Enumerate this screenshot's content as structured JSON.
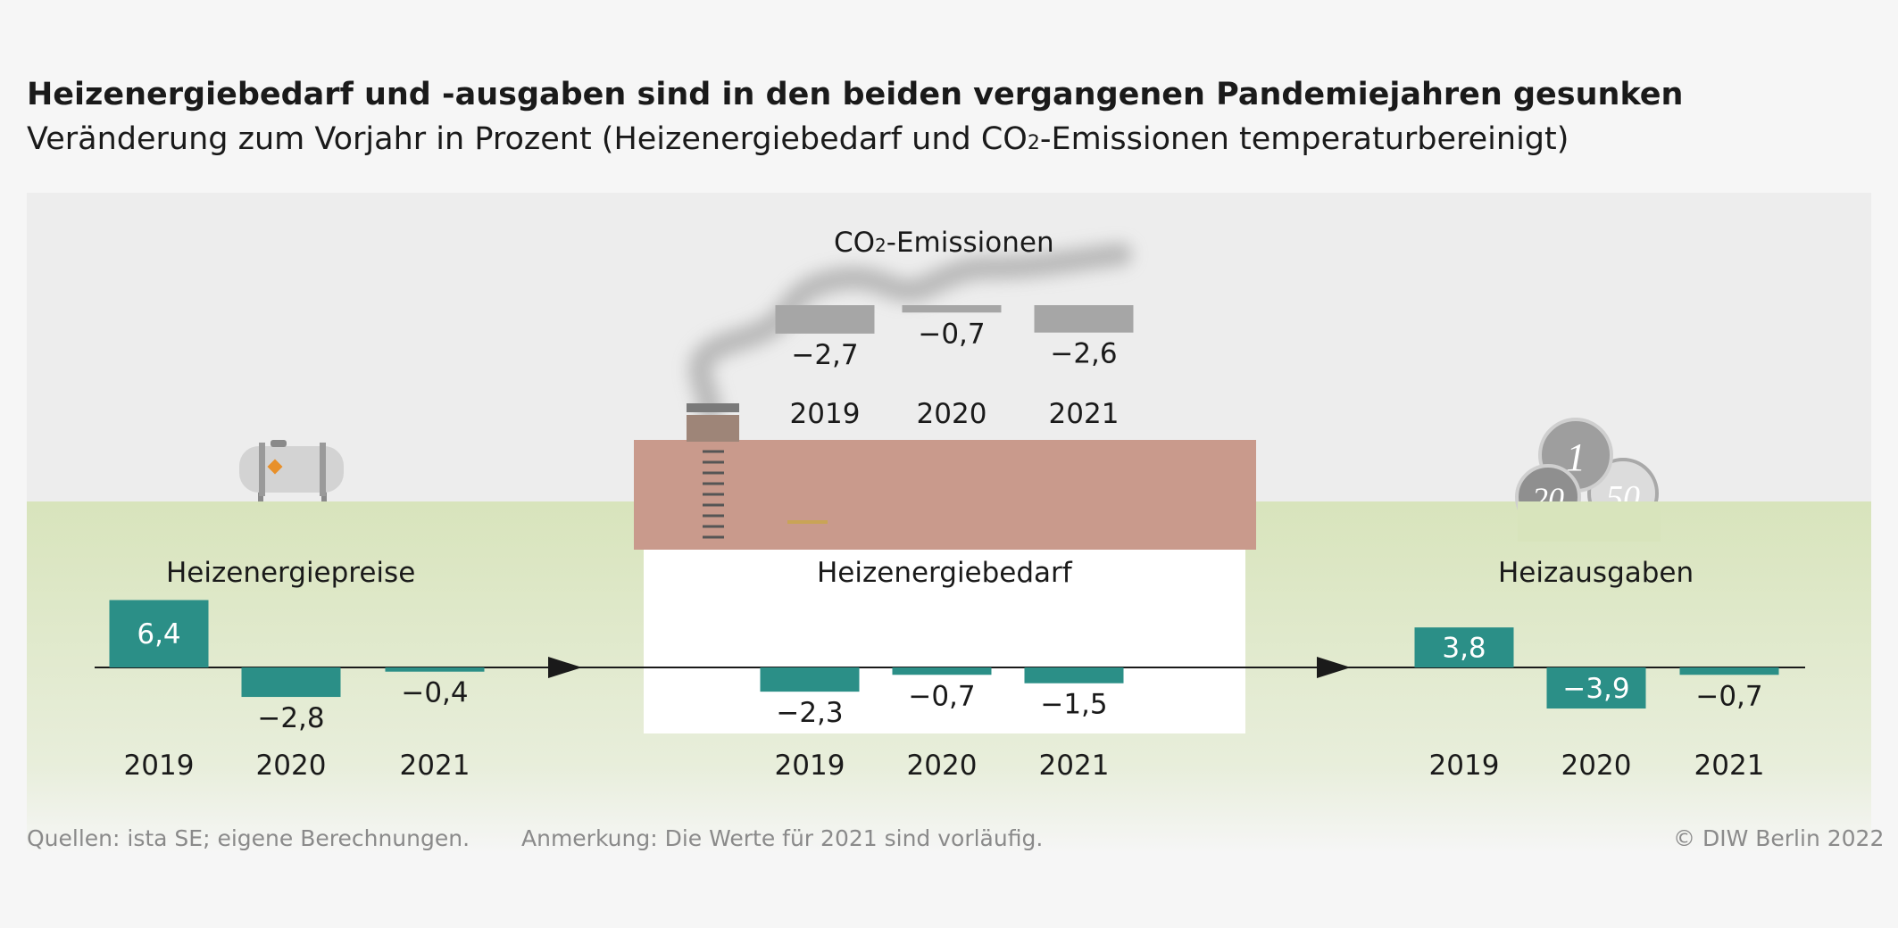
{
  "header": {
    "title": "Heizenergiebedarf und -ausgaben sind in den beiden vergangenen Pandemiejahren gesunken",
    "subtitle_pre": "Veränderung zum Vorjahr in Prozent (Heizenergiebedarf und CO",
    "subtitle_sub": "2",
    "subtitle_post": "-Emissionen temperaturbereinigt)"
  },
  "footer": {
    "sources": "Quellen: ista SE; eigene Berechnungen.",
    "note": "Anmerkung: Die Werte für 2021 sind vorläufig.",
    "copyright": "© DIW Berlin 2022"
  },
  "colors": {
    "bar_teal": "#2b8f87",
    "bar_grey": "#a6a6a6",
    "sky": "#ededed",
    "ground": "#d8e4bc",
    "roof": "#c99a8c",
    "axis": "#1a1a1a"
  },
  "icons": [
    "oil-tank-icon",
    "chimney-smoke-icon",
    "coin-icon"
  ],
  "chart_data": [
    {
      "type": "bar",
      "title": "Heizenergiepreise",
      "categories": [
        "2019",
        "2020",
        "2021"
      ],
      "values": [
        6.4,
        -2.8,
        -0.4
      ],
      "value_labels": [
        "6,4",
        "−2,8",
        "−0,4"
      ],
      "ylim": [
        -4,
        7
      ]
    },
    {
      "type": "bar",
      "title": "Heizenergiebedarf",
      "categories": [
        "2019",
        "2020",
        "2021"
      ],
      "values": [
        -2.3,
        -0.7,
        -1.5
      ],
      "value_labels": [
        "−2,3",
        "−0,7",
        "−1,5"
      ],
      "ylim": [
        -4,
        7
      ]
    },
    {
      "type": "bar",
      "title": "Heizausgaben",
      "categories": [
        "2019",
        "2020",
        "2021"
      ],
      "values": [
        3.8,
        -3.9,
        -0.7
      ],
      "value_labels": [
        "3,8",
        "−3,9",
        "−0,7"
      ],
      "ylim": [
        -4,
        7
      ]
    },
    {
      "type": "bar",
      "title_pre": "CO",
      "title_sub": "2",
      "title_post": "-Emissionen",
      "categories": [
        "2019",
        "2020",
        "2021"
      ],
      "values": [
        -2.7,
        -0.7,
        -2.6
      ],
      "value_labels": [
        "−2,7",
        "−0,7",
        "−2,6"
      ],
      "ylim": [
        -4,
        7
      ]
    }
  ],
  "coins": [
    "1",
    "20",
    "50"
  ]
}
